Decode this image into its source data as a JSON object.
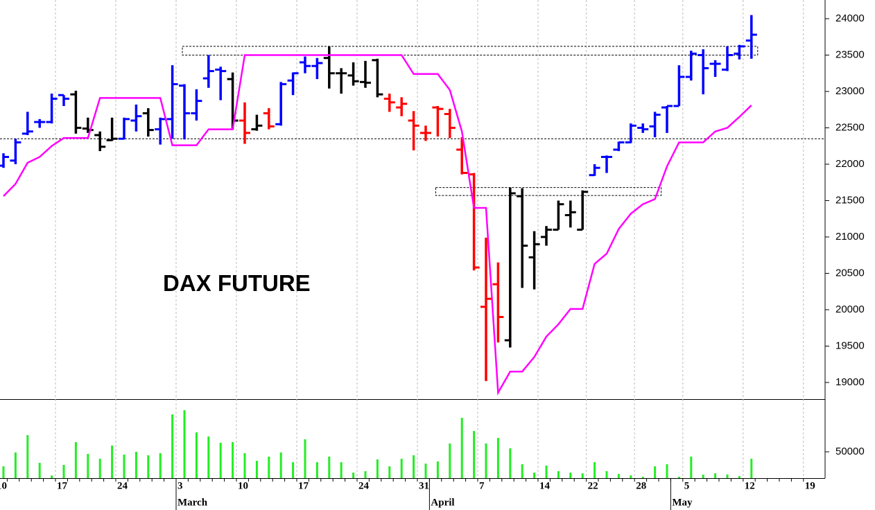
{
  "chart_data": [
    {
      "type": "ohlc",
      "annotation": "DAX FUTURE",
      "categories": [
        "10",
        null,
        null,
        null,
        null,
        "17",
        null,
        null,
        null,
        null,
        "24",
        null,
        null,
        null,
        null,
        "3",
        null,
        null,
        null,
        null,
        "10",
        null,
        null,
        null,
        null,
        "17",
        null,
        null,
        null,
        null,
        "24",
        null,
        null,
        null,
        null,
        "31",
        null,
        null,
        null,
        null,
        "7",
        null,
        null,
        null,
        null,
        "14",
        null,
        null,
        null,
        "22",
        null,
        null,
        null,
        "28",
        null,
        null,
        null,
        "5",
        null,
        null,
        null,
        null,
        "12",
        null,
        null,
        null,
        null,
        "19"
      ],
      "months": [
        {
          "label": "March",
          "at": 15
        },
        {
          "label": "April",
          "at": 36
        },
        {
          "label": "May",
          "at": 56
        }
      ],
      "open": [
        21980,
        22050,
        22420,
        22580,
        22580,
        22950,
        22960,
        22490,
        22400,
        22330,
        22350,
        22600,
        22700,
        22480,
        22620,
        23080,
        22700,
        23180,
        23300,
        23170,
        22600,
        22480,
        22700,
        22550,
        23150,
        23400,
        23350,
        23460,
        23250,
        23220,
        23130,
        23430,
        22900,
        22780,
        22600,
        22430,
        22780,
        22690,
        22200,
        21860,
        20040,
        20350,
        19580,
        21560,
        20720,
        21000,
        21100,
        21300,
        21100,
        21850,
        22100,
        22200,
        22300,
        22500,
        22520,
        22780,
        22800,
        23200,
        23500,
        23380,
        23300,
        23520,
        23700,
        null,
        null,
        null,
        null,
        null
      ],
      "high": [
        22150,
        22350,
        22720,
        22620,
        22970,
        22950,
        23010,
        22640,
        22450,
        22640,
        22640,
        22820,
        22770,
        22640,
        23360,
        23100,
        23030,
        23500,
        23340,
        23260,
        22850,
        22680,
        22770,
        23130,
        23260,
        23480,
        23460,
        23620,
        23320,
        23400,
        23420,
        23450,
        22970,
        22920,
        22730,
        22530,
        22800,
        22760,
        22370,
        21880,
        20990,
        20650,
        21680,
        21670,
        21080,
        21150,
        21500,
        21500,
        21640,
        22000,
        22120,
        22310,
        22560,
        22560,
        22720,
        22800,
        23360,
        23560,
        23580,
        23430,
        23620,
        23640,
        24050,
        null,
        null,
        null,
        null,
        null
      ],
      "low": [
        21950,
        22000,
        22400,
        22500,
        22560,
        22800,
        22420,
        22430,
        22180,
        22320,
        22340,
        22450,
        22380,
        22270,
        22350,
        22340,
        22600,
        23050,
        22880,
        22480,
        22280,
        22460,
        22480,
        22530,
        22950,
        23250,
        23170,
        23040,
        22970,
        23080,
        23050,
        22920,
        22720,
        22660,
        22190,
        22320,
        22380,
        22360,
        21860,
        20540,
        19020,
        19550,
        19480,
        20300,
        20280,
        20880,
        21100,
        21130,
        21100,
        21840,
        21880,
        22180,
        22290,
        22430,
        22370,
        22430,
        22800,
        23150,
        22960,
        23200,
        23280,
        23440,
        23450,
        null,
        null,
        null,
        null,
        null
      ],
      "close": [
        22100,
        22300,
        22450,
        22580,
        22900,
        22900,
        22500,
        22470,
        22240,
        22350,
        22620,
        22660,
        22470,
        22620,
        23100,
        22700,
        22870,
        23280,
        23280,
        22600,
        22430,
        22530,
        22520,
        23100,
        23250,
        23350,
        23390,
        23250,
        23250,
        23140,
        23120,
        22960,
        22850,
        22830,
        22530,
        22430,
        22760,
        22500,
        21880,
        20580,
        20150,
        19900,
        21600,
        20880,
        20900,
        21100,
        21450,
        21340,
        21620,
        21950,
        22100,
        22300,
        22530,
        22480,
        22680,
        22800,
        23200,
        23520,
        23320,
        23380,
        23500,
        23620,
        23780,
        null,
        null,
        null,
        null,
        null
      ],
      "colors": [
        "blue",
        "blue",
        "blue",
        "blue",
        "blue",
        "blue",
        "black",
        "black",
        "black",
        "black",
        "blue",
        "blue",
        "black",
        "blue",
        "blue",
        "blue",
        "blue",
        "blue",
        "blue",
        "black",
        "red",
        "black",
        "red",
        "blue",
        "blue",
        "blue",
        "blue",
        "black",
        "black",
        "black",
        "black",
        "black",
        "red",
        "red",
        "red",
        "red",
        "red",
        "red",
        "red",
        "red",
        "red",
        "red",
        "black",
        "black",
        "black",
        "black",
        "black",
        "black",
        "black",
        "blue",
        "blue",
        "blue",
        "blue",
        "blue",
        "blue",
        "blue",
        "blue",
        "blue",
        "blue",
        "blue",
        "blue",
        "blue",
        "blue",
        null,
        null,
        null,
        null,
        null
      ],
      "stop": {
        "color": "#ff00ff",
        "values": [
          21560,
          21730,
          22020,
          22100,
          22250,
          22360,
          22360,
          22360,
          22910,
          22910,
          22910,
          22910,
          22910,
          22910,
          22260,
          22260,
          22260,
          22480,
          22480,
          22480,
          23500,
          23500,
          23500,
          23500,
          23500,
          23500,
          23500,
          23500,
          23500,
          23500,
          23500,
          23500,
          23500,
          23500,
          23240,
          23240,
          23240,
          23020,
          22450,
          21400,
          21400,
          18860,
          19150,
          19150,
          19350,
          19630,
          19800,
          20010,
          20010,
          20630,
          20770,
          21110,
          21320,
          21450,
          21520,
          21970,
          22300,
          22300,
          22300,
          22450,
          22500,
          22650,
          22810,
          null,
          null,
          null,
          null,
          null
        ]
      },
      "levels": [
        22350
      ],
      "ranges": [
        {
          "low": 23500,
          "high": 23620,
          "from": 15,
          "to": 62
        },
        {
          "low": 21570,
          "high": 21680,
          "from": 36,
          "to": 54
        }
      ],
      "ylim": [
        18771,
        24257
      ],
      "yticks": [
        19000,
        19500,
        20000,
        20500,
        21000,
        21500,
        22000,
        22500,
        23000,
        23500,
        24000
      ],
      "grid": true
    },
    {
      "type": "bar",
      "color": "#22ee22",
      "values": [
        22400,
        48700,
        81600,
        29000,
        5000,
        25000,
        68400,
        46000,
        36800,
        61800,
        44700,
        50000,
        43400,
        47400,
        121000,
        129000,
        86800,
        79000,
        67100,
        68400,
        47400,
        32900,
        40800,
        48700,
        30300,
        73700,
        30300,
        40800,
        30300,
        10500,
        13200,
        35500,
        22400,
        36800,
        43400,
        27600,
        31600,
        65800,
        114500,
        89500,
        65800,
        76300,
        56600,
        26300,
        10500,
        23700,
        13200,
        10500,
        9200,
        30300,
        13200,
        7900,
        5300,
        2600,
        22400,
        26300,
        2600,
        40800,
        6600,
        9200,
        7000,
        3900,
        36800,
        null,
        null,
        null,
        null,
        null
      ],
      "ylim": [
        0,
        148700
      ],
      "yticks": [
        50000
      ]
    }
  ]
}
